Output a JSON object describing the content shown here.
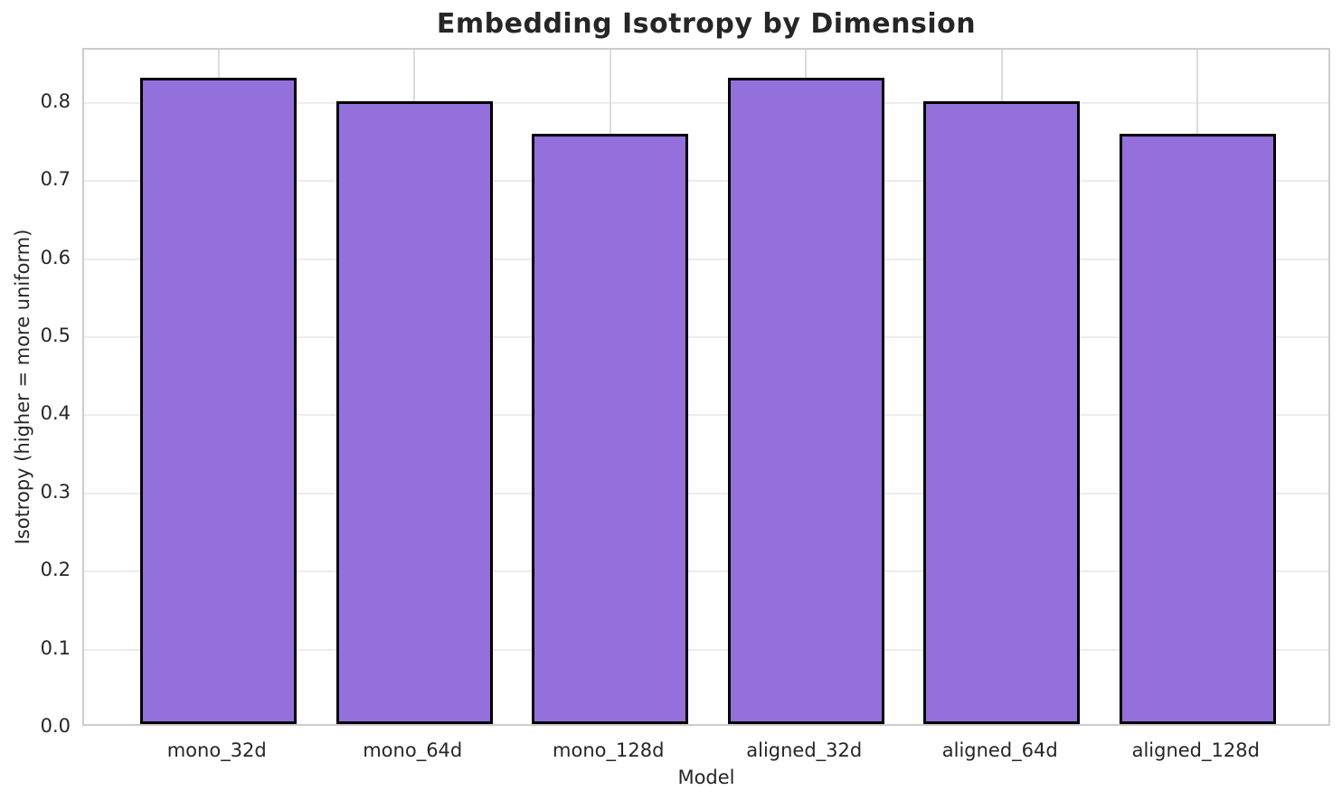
{
  "figure": {
    "background": "#ffffff"
  },
  "chart_data": {
    "type": "bar",
    "title": "Embedding Isotropy by Dimension",
    "xlabel": "Model",
    "ylabel": "Isotropy (higher = more uniform)",
    "categories": [
      "mono_32d",
      "mono_64d",
      "mono_128d",
      "aligned_32d",
      "aligned_64d",
      "aligned_128d"
    ],
    "values": [
      0.827,
      0.797,
      0.756,
      0.827,
      0.797,
      0.756
    ],
    "ylim": [
      0,
      0.868
    ],
    "yticks": [
      0.0,
      0.1,
      0.2,
      0.3,
      0.4,
      0.5,
      0.6,
      0.7,
      0.8
    ],
    "ytick_labels": [
      "0.0",
      "0.1",
      "0.2",
      "0.3",
      "0.4",
      "0.5",
      "0.6",
      "0.7",
      "0.8"
    ],
    "grid": true,
    "legend": false,
    "bar_color": "#9370DB",
    "bar_edge_color": "#000000",
    "grid_color": "#ececec",
    "xgrid_color": "#dcdcdc",
    "spine_color": "#cccccc",
    "text_color": "#262626",
    "bar_width_units": 0.8,
    "x_margin_units": 0.687
  }
}
